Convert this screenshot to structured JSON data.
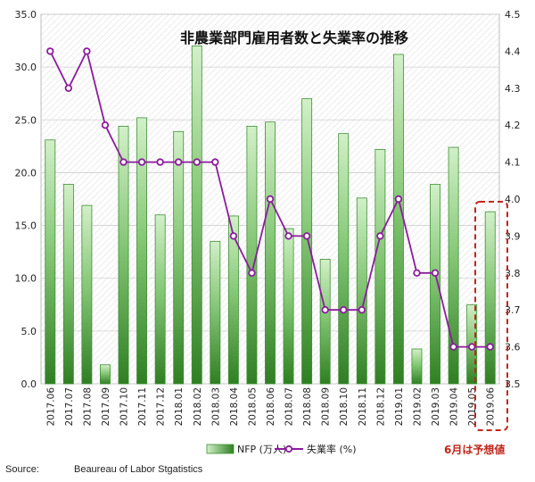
{
  "chart_data": {
    "type": "bar+line",
    "title": "非農業部門雇用者数と失業率の推移",
    "categories": [
      "2017.06",
      "2017.07",
      "2017.08",
      "2017.09",
      "2017.10",
      "2017.11",
      "2017.12",
      "2018.01",
      "2018.02",
      "2018.03",
      "2018.04",
      "2018.05",
      "2018.06",
      "2018.07",
      "2018.08",
      "2018.09",
      "2018.10",
      "2018.11",
      "2018.12",
      "2019.01",
      "2019.02",
      "2019.03",
      "2019.04",
      "2019.05",
      "2019.06"
    ],
    "series": [
      {
        "name": "NFP (万人)",
        "type": "bar",
        "axis": "left",
        "values": [
          23.1,
          18.9,
          16.9,
          1.8,
          24.4,
          25.2,
          16.0,
          23.9,
          32.0,
          13.5,
          15.9,
          24.4,
          24.8,
          14.7,
          27.0,
          11.8,
          23.7,
          17.6,
          22.2,
          31.2,
          3.3,
          18.9,
          22.4,
          7.5,
          16.3
        ]
      },
      {
        "name": "失業率 (%)",
        "type": "line",
        "axis": "right",
        "values": [
          4.4,
          4.3,
          4.4,
          4.2,
          4.1,
          4.1,
          4.1,
          4.1,
          4.1,
          4.1,
          3.9,
          3.8,
          4.0,
          3.9,
          3.9,
          3.7,
          3.7,
          3.7,
          3.9,
          4.0,
          3.8,
          3.8,
          3.6,
          3.6,
          3.6
        ]
      }
    ],
    "y_left": {
      "min": 0,
      "max": 35,
      "step": 5,
      "ticks": [
        "0.0",
        "5.0",
        "10.0",
        "15.0",
        "20.0",
        "25.0",
        "30.0",
        "35.0"
      ]
    },
    "y_right": {
      "min": 3.5,
      "max": 4.5,
      "step": 0.1,
      "ticks": [
        "3.5",
        "3.6",
        "3.7",
        "3.8",
        "3.9",
        "4.0",
        "4.1",
        "4.2",
        "4.3",
        "4.4",
        "4.5"
      ]
    },
    "legend_position": "bottom",
    "annotation": "6月は予想値",
    "highlighted_category": "2019.06",
    "colors": {
      "bar_top": "#c8ecc0",
      "bar_bottom": "#2f7f22",
      "bar_stroke": "#3f8f35",
      "line": "#8b1c9c",
      "annotation": "#c0261a",
      "grid": "#cfcfcf"
    }
  },
  "source": {
    "label": "Source:",
    "value": "Beaureau of Labor Stgatistics"
  }
}
